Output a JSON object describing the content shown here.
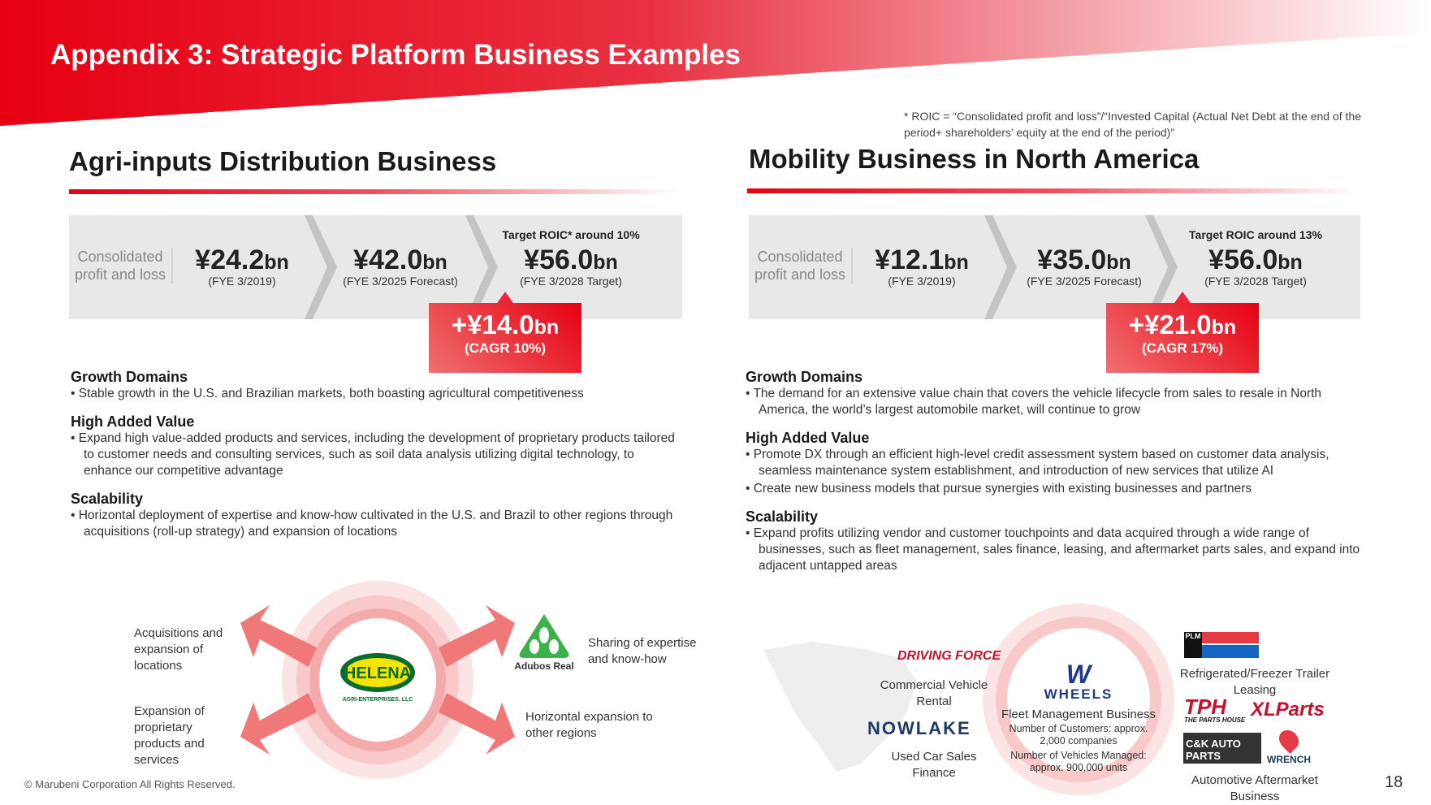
{
  "title": "Appendix 3: Strategic Platform Business Examples",
  "footnote": "* ROIC = “Consolidated profit and loss”/“Invested Capital (Actual Net Debt at the end of the period+ shareholders’ equity at the end of the period)”",
  "left": {
    "heading": "Agri-inputs Distribution Business",
    "metric_label": "Consolidated profit and loss",
    "values": [
      {
        "num": "¥24.2",
        "unit": "bn",
        "sub": "(FYE 3/2019)"
      },
      {
        "num": "¥42.0",
        "unit": "bn",
        "sub": "(FYE 3/2025 Forecast)"
      },
      {
        "num": "¥56.0",
        "unit": "bn",
        "sub": "(FYE 3/2028 Target)"
      }
    ],
    "roic": "Target ROIC* around 10%",
    "badge": {
      "num": "+¥14.0",
      "unit": "bn",
      "sub": "(CAGR 10%)"
    },
    "sections": [
      {
        "h": "Growth Domains",
        "items": [
          "Stable growth in the U.S. and Brazilian markets, both boasting agricultural competitiveness"
        ]
      },
      {
        "h": "High Added Value",
        "items": [
          "Expand high value-added products and services, including the development of proprietary products tailored to customer needs and consulting services, such as soil data analysis utilizing digital technology, to enhance our competitive advantage"
        ]
      },
      {
        "h": "Scalability",
        "items": [
          "Horizontal deployment of expertise and know-how cultivated in the U.S. and Brazil to other regions through acquisitions (roll-up strategy) and expansion of locations"
        ]
      }
    ],
    "diagram": {
      "tl": "Acquisitions and expansion of locations",
      "bl": "Expansion of proprietary products and services",
      "tr": "Sharing of expertise and know-how",
      "br": "Horizontal expansion to other regions",
      "center_logo": "HELENA",
      "center_sub": "AGRI-ENTERPRISES, LLC",
      "partner_logo": "Adubos Real"
    }
  },
  "right": {
    "heading": "Mobility Business in North America",
    "metric_label": "Consolidated profit and loss",
    "values": [
      {
        "num": "¥12.1",
        "unit": "bn",
        "sub": "(FYE 3/2019)"
      },
      {
        "num": "¥35.0",
        "unit": "bn",
        "sub": "(FYE 3/2025 Forecast)"
      },
      {
        "num": "¥56.0",
        "unit": "bn",
        "sub": "(FYE 3/2028 Target)"
      }
    ],
    "roic": "Target ROIC around 13%",
    "badge": {
      "num": "+¥21.0",
      "unit": "bn",
      "sub": "(CAGR 17%)"
    },
    "sections": [
      {
        "h": "Growth Domains",
        "items": [
          "The demand for an extensive value chain that covers the vehicle lifecycle from sales to resale in North America, the world’s largest automobile market, will continue to grow"
        ]
      },
      {
        "h": "High Added Value",
        "items": [
          "Promote DX through an efficient high-level credit assessment system based on customer data analysis, seamless maintenance system establishment, and introduction of new services that utilize AI",
          "Create new business models that pursue synergies with existing businesses and partners"
        ]
      },
      {
        "h": "Scalability",
        "items": [
          "Expand profits utilizing vendor and customer touchpoints and data acquired through a wide range of businesses, such as fleet management, sales finance, leasing, and aftermarket parts sales, and expand into adjacent untapped areas"
        ]
      }
    ],
    "diagram": {
      "driving_force": "DRIVING FORCE",
      "rental": "Commercial Vehicle Rental",
      "nowlake": "NOWLAKE",
      "used": "Used Car Sales Finance",
      "wheels": "WHEELS",
      "fleet": "Fleet Management Business",
      "customers": "Number of Customers: approx. 2,000 companies",
      "vehicles": "Number of Vehicles Managed: approx. 900,000 units",
      "plm": "PLM",
      "trailer": "Refrigerated/Freezer Trailer Leasing",
      "tph": "TPH",
      "tph_sub": "THE PARTS HOUSE",
      "xl": "XLParts",
      "ck": "C&K AUTO PARTS",
      "wrench": "WRENCH",
      "aftermarket": "Automotive Aftermarket Business"
    }
  },
  "copyright": "© Marubeni Corporation All Rights Reserved.",
  "page": "18"
}
